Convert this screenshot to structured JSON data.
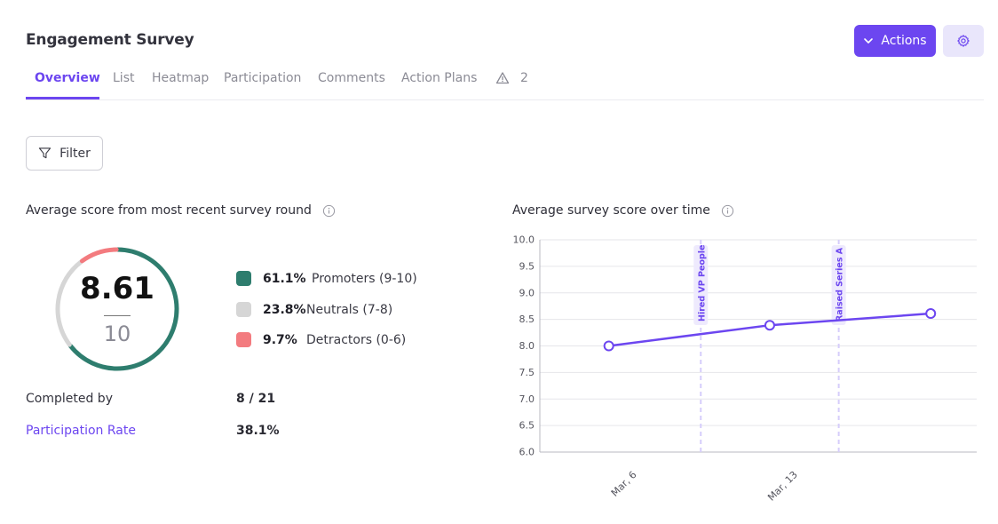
{
  "header": {
    "title": "Engagement Survey",
    "actions_label": "Actions",
    "actions_icon": "chevron-down-icon",
    "settings_icon": "gear-icon"
  },
  "tabs": [
    {
      "label": "Overview",
      "active": true
    },
    {
      "label": "List"
    },
    {
      "label": "Heatmap"
    },
    {
      "label": "Participation"
    },
    {
      "label": "Comments"
    },
    {
      "label": "Action Plans"
    }
  ],
  "warnings": {
    "icon": "warning-icon",
    "count": "2"
  },
  "filter": {
    "label": "Filter",
    "icon": "filter-icon"
  },
  "score_section": {
    "title": "Average score from most recent survey round",
    "info_icon": "info-icon",
    "score": "8.61",
    "out_of": "10",
    "legend": [
      {
        "pct": "61.1%",
        "label": "Promoters (9-10)",
        "color": "#2e7d6e",
        "fraction": 0.611
      },
      {
        "pct": "23.8%",
        "label": "Neutrals (7-8)",
        "color": "#d6d6d6",
        "fraction": 0.238
      },
      {
        "pct": "9.7%",
        "label": "Detractors (0-6)",
        "color": "#f37b7f",
        "fraction": 0.097
      }
    ],
    "stats": [
      {
        "label": "Completed by",
        "value": "8 / 21",
        "link": false
      },
      {
        "label": "Participation Rate",
        "value": "38.1%",
        "link": true
      }
    ]
  },
  "chart_section": {
    "title": "Average survey score over time",
    "info_icon": "info-icon"
  },
  "chart_data": {
    "type": "line",
    "title": "Average survey score over time",
    "xlabel": "",
    "ylabel": "",
    "ylim": [
      6.0,
      10.0
    ],
    "y_ticks": [
      "10.0",
      "9.5",
      "9.0",
      "8.5",
      "8.0",
      "7.5",
      "7.0",
      "6.5",
      "6.0"
    ],
    "x_ticks": [
      {
        "label": "Mar, 6",
        "day": 6
      },
      {
        "label": "Mar, 13",
        "day": 13
      }
    ],
    "xlim_days": [
      1,
      20
    ],
    "grid": true,
    "line_color": "#6c46f0",
    "series": [
      {
        "values": [
          {
            "day": 4,
            "y": 8.0
          },
          {
            "day": 11,
            "y": 8.39
          },
          {
            "day": 18,
            "y": 8.61
          }
        ]
      }
    ],
    "annotations": [
      {
        "label": "Hired VP People",
        "day": 8
      },
      {
        "label": "Raised Series A",
        "day": 14
      }
    ]
  }
}
